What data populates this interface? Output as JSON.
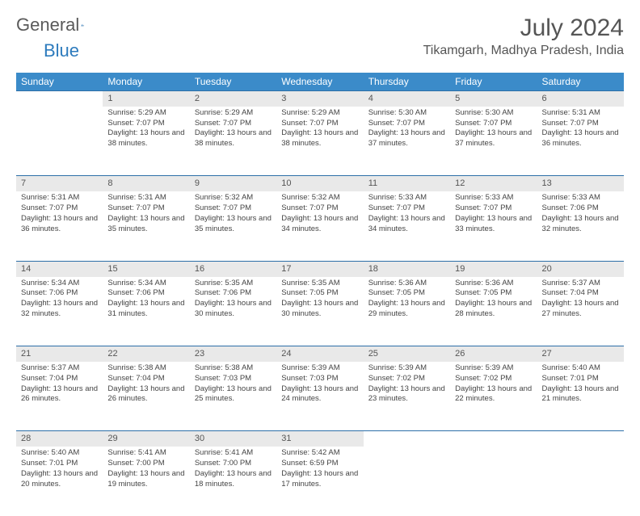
{
  "brand": {
    "text1": "General",
    "text2": "Blue"
  },
  "title": "July 2024",
  "location": "Tikamgarh, Madhya Pradesh, India",
  "colors": {
    "header_bg": "#3b8bc9",
    "header_text": "#ffffff",
    "daynum_bg": "#e9e9e9",
    "row_divider": "#2d6fa8",
    "logo_gray": "#5a5a5a",
    "logo_blue": "#2d7bbd"
  },
  "weekdays": [
    "Sunday",
    "Monday",
    "Tuesday",
    "Wednesday",
    "Thursday",
    "Friday",
    "Saturday"
  ],
  "weeks": [
    [
      null,
      {
        "n": "1",
        "sr": "5:29 AM",
        "ss": "7:07 PM",
        "dl": "13 hours and 38 minutes."
      },
      {
        "n": "2",
        "sr": "5:29 AM",
        "ss": "7:07 PM",
        "dl": "13 hours and 38 minutes."
      },
      {
        "n": "3",
        "sr": "5:29 AM",
        "ss": "7:07 PM",
        "dl": "13 hours and 38 minutes."
      },
      {
        "n": "4",
        "sr": "5:30 AM",
        "ss": "7:07 PM",
        "dl": "13 hours and 37 minutes."
      },
      {
        "n": "5",
        "sr": "5:30 AM",
        "ss": "7:07 PM",
        "dl": "13 hours and 37 minutes."
      },
      {
        "n": "6",
        "sr": "5:31 AM",
        "ss": "7:07 PM",
        "dl": "13 hours and 36 minutes."
      }
    ],
    [
      {
        "n": "7",
        "sr": "5:31 AM",
        "ss": "7:07 PM",
        "dl": "13 hours and 36 minutes."
      },
      {
        "n": "8",
        "sr": "5:31 AM",
        "ss": "7:07 PM",
        "dl": "13 hours and 35 minutes."
      },
      {
        "n": "9",
        "sr": "5:32 AM",
        "ss": "7:07 PM",
        "dl": "13 hours and 35 minutes."
      },
      {
        "n": "10",
        "sr": "5:32 AM",
        "ss": "7:07 PM",
        "dl": "13 hours and 34 minutes."
      },
      {
        "n": "11",
        "sr": "5:33 AM",
        "ss": "7:07 PM",
        "dl": "13 hours and 34 minutes."
      },
      {
        "n": "12",
        "sr": "5:33 AM",
        "ss": "7:07 PM",
        "dl": "13 hours and 33 minutes."
      },
      {
        "n": "13",
        "sr": "5:33 AM",
        "ss": "7:06 PM",
        "dl": "13 hours and 32 minutes."
      }
    ],
    [
      {
        "n": "14",
        "sr": "5:34 AM",
        "ss": "7:06 PM",
        "dl": "13 hours and 32 minutes."
      },
      {
        "n": "15",
        "sr": "5:34 AM",
        "ss": "7:06 PM",
        "dl": "13 hours and 31 minutes."
      },
      {
        "n": "16",
        "sr": "5:35 AM",
        "ss": "7:06 PM",
        "dl": "13 hours and 30 minutes."
      },
      {
        "n": "17",
        "sr": "5:35 AM",
        "ss": "7:05 PM",
        "dl": "13 hours and 30 minutes."
      },
      {
        "n": "18",
        "sr": "5:36 AM",
        "ss": "7:05 PM",
        "dl": "13 hours and 29 minutes."
      },
      {
        "n": "19",
        "sr": "5:36 AM",
        "ss": "7:05 PM",
        "dl": "13 hours and 28 minutes."
      },
      {
        "n": "20",
        "sr": "5:37 AM",
        "ss": "7:04 PM",
        "dl": "13 hours and 27 minutes."
      }
    ],
    [
      {
        "n": "21",
        "sr": "5:37 AM",
        "ss": "7:04 PM",
        "dl": "13 hours and 26 minutes."
      },
      {
        "n": "22",
        "sr": "5:38 AM",
        "ss": "7:04 PM",
        "dl": "13 hours and 26 minutes."
      },
      {
        "n": "23",
        "sr": "5:38 AM",
        "ss": "7:03 PM",
        "dl": "13 hours and 25 minutes."
      },
      {
        "n": "24",
        "sr": "5:39 AM",
        "ss": "7:03 PM",
        "dl": "13 hours and 24 minutes."
      },
      {
        "n": "25",
        "sr": "5:39 AM",
        "ss": "7:02 PM",
        "dl": "13 hours and 23 minutes."
      },
      {
        "n": "26",
        "sr": "5:39 AM",
        "ss": "7:02 PM",
        "dl": "13 hours and 22 minutes."
      },
      {
        "n": "27",
        "sr": "5:40 AM",
        "ss": "7:01 PM",
        "dl": "13 hours and 21 minutes."
      }
    ],
    [
      {
        "n": "28",
        "sr": "5:40 AM",
        "ss": "7:01 PM",
        "dl": "13 hours and 20 minutes."
      },
      {
        "n": "29",
        "sr": "5:41 AM",
        "ss": "7:00 PM",
        "dl": "13 hours and 19 minutes."
      },
      {
        "n": "30",
        "sr": "5:41 AM",
        "ss": "7:00 PM",
        "dl": "13 hours and 18 minutes."
      },
      {
        "n": "31",
        "sr": "5:42 AM",
        "ss": "6:59 PM",
        "dl": "13 hours and 17 minutes."
      },
      null,
      null,
      null
    ]
  ],
  "labels": {
    "sunrise": "Sunrise:",
    "sunset": "Sunset:",
    "daylight": "Daylight:"
  }
}
